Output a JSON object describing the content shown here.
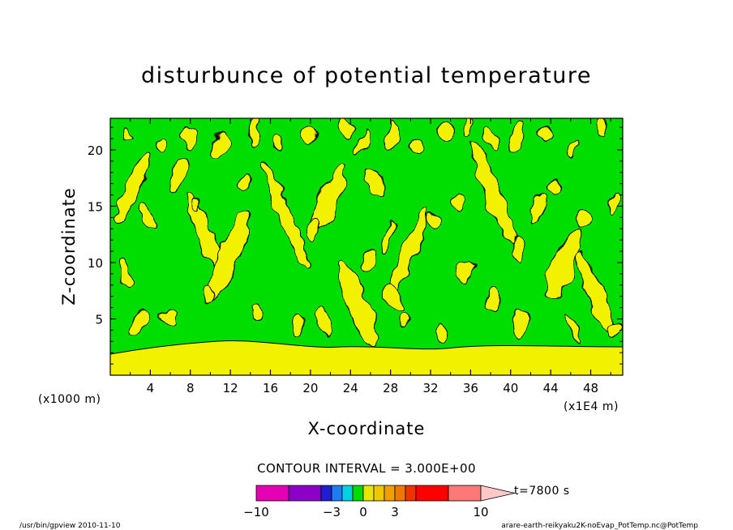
{
  "chart_data": {
    "type": "heatmap",
    "title": "disturbunce of potential temperature",
    "xlabel": "X-coordinate",
    "ylabel": "Z-coordinate",
    "x_scale_label": "(x1000 m)",
    "x_multiplier_label": "(x1E4 m)",
    "x_ticks": [
      "4",
      "8",
      "12",
      "16",
      "20",
      "24",
      "28",
      "32",
      "36",
      "40",
      "44",
      "48"
    ],
    "y_ticks": [
      "5",
      "10",
      "15",
      "20"
    ],
    "xlim": [
      0,
      51.2
    ],
    "ylim": [
      0,
      22.8
    ],
    "contour_interval_label": "CONTOUR INTERVAL = 3.000E+00",
    "time_label": "t=7800 s",
    "colorbar": {
      "tick_labels": [
        "−10",
        "−3",
        "0",
        "3",
        "10"
      ],
      "colors": [
        "#e600b4",
        "#8c00c8",
        "#1e1ed2",
        "#1e7cf0",
        "#00d2e6",
        "#00dc00",
        "#e6e600",
        "#f0c800",
        "#f0a000",
        "#f07800",
        "#f03200",
        "#ff0000",
        "#ff7878",
        "#ffc8c8"
      ]
    },
    "field_colors": {
      "background": "#00dd00",
      "positive": "#f2f200",
      "contour": "#000000"
    },
    "bands": [
      {
        "x": 2.2,
        "z": 16.5
      },
      {
        "x": 9.5,
        "z": 12.5
      },
      {
        "x": 11.8,
        "z": 10.5
      },
      {
        "x": 17.5,
        "z": 14.2
      },
      {
        "x": 21.8,
        "z": 15.5
      },
      {
        "x": 24.7,
        "z": 6.4
      },
      {
        "x": 29.8,
        "z": 10.8
      },
      {
        "x": 38.2,
        "z": 16.2
      },
      {
        "x": 45.2,
        "z": 9.8
      },
      {
        "x": 48.5,
        "z": 7.2
      }
    ],
    "blobs": [
      {
        "x": 1.5,
        "z": 21.5
      },
      {
        "x": 5.2,
        "z": 20.3
      },
      {
        "x": 7.8,
        "z": 21.2
      },
      {
        "x": 11.2,
        "z": 20.6
      },
      {
        "x": 14.3,
        "z": 21.8
      },
      {
        "x": 16.7,
        "z": 20.7
      },
      {
        "x": 19.8,
        "z": 21.3
      },
      {
        "x": 23.5,
        "z": 21.9
      },
      {
        "x": 25.2,
        "z": 20.8
      },
      {
        "x": 28.2,
        "z": 21.2
      },
      {
        "x": 30.6,
        "z": 20.3
      },
      {
        "x": 33.6,
        "z": 21.6
      },
      {
        "x": 35.7,
        "z": 22.3
      },
      {
        "x": 38.1,
        "z": 20.9
      },
      {
        "x": 40.6,
        "z": 21.3
      },
      {
        "x": 43.5,
        "z": 21.5
      },
      {
        "x": 46.2,
        "z": 20.1
      },
      {
        "x": 49.3,
        "z": 21.8
      },
      {
        "x": 3.8,
        "z": 14.2
      },
      {
        "x": 6.8,
        "z": 17.8
      },
      {
        "x": 8.6,
        "z": 15.2
      },
      {
        "x": 13.5,
        "z": 17.2
      },
      {
        "x": 20.3,
        "z": 12.6
      },
      {
        "x": 26.4,
        "z": 17.2
      },
      {
        "x": 27.8,
        "z": 12.2
      },
      {
        "x": 32.4,
        "z": 13.7
      },
      {
        "x": 34.8,
        "z": 15.2
      },
      {
        "x": 35.4,
        "z": 9.2
      },
      {
        "x": 40.8,
        "z": 11.2
      },
      {
        "x": 42.7,
        "z": 14.7
      },
      {
        "x": 44.4,
        "z": 16.8
      },
      {
        "x": 47.3,
        "z": 13.7
      },
      {
        "x": 50.4,
        "z": 15.2
      },
      {
        "x": 1.4,
        "z": 9.2
      },
      {
        "x": 2.9,
        "z": 4.6
      },
      {
        "x": 5.8,
        "z": 5.2
      },
      {
        "x": 14.6,
        "z": 5.5
      },
      {
        "x": 18.8,
        "z": 4.4
      },
      {
        "x": 21.4,
        "z": 4.8
      },
      {
        "x": 28.4,
        "z": 6.7
      },
      {
        "x": 29.4,
        "z": 4.7
      },
      {
        "x": 33.2,
        "z": 3.9
      },
      {
        "x": 38.2,
        "z": 6.6
      },
      {
        "x": 41.0,
        "z": 4.5
      },
      {
        "x": 46.3,
        "z": 4.2
      },
      {
        "x": 50.3,
        "z": 3.9
      },
      {
        "x": 9.8,
        "z": 7.2
      },
      {
        "x": 25.8,
        "z": 10.2
      }
    ]
  },
  "footer": {
    "left": "/usr/bin/gpview   2010-11-10",
    "right": "arare-earth-reikyaku2K-noEvap_PotTemp.nc@PotTemp"
  }
}
